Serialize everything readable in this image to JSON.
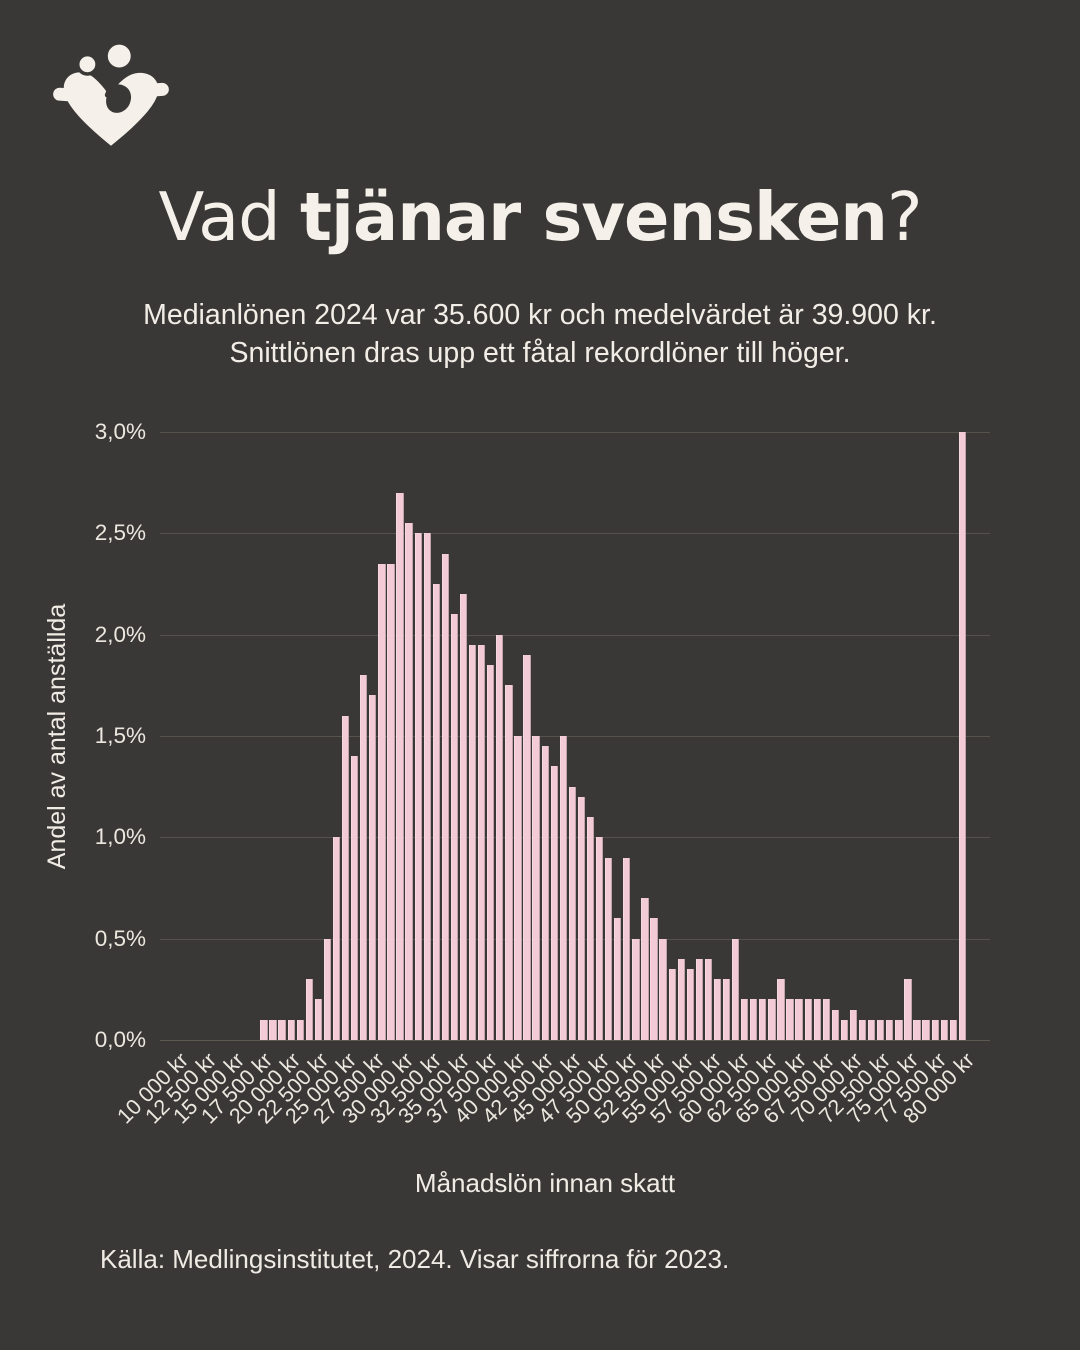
{
  "page": {
    "background": "#3a3836",
    "text_color": "#f4f0e9",
    "accent_bar_color": "#f3cbd7"
  },
  "logo": {
    "name": "family-heart-logo",
    "color": "#f5f1ea"
  },
  "title": {
    "prefix": "Vad ",
    "bold": "tjänar svensken",
    "suffix": "?"
  },
  "subtitle": "Medianlönen 2024 var 35.600 kr och medelvärdet är 39.900 kr. Snittlönen dras upp ett fåtal rekordlöner till höger.",
  "chart_data": {
    "type": "bar",
    "title": "",
    "xlabel": "Månadslön innan skatt",
    "ylabel": "Andel av antal anställda",
    "ylim": [
      0,
      3.0
    ],
    "grid": true,
    "legend": false,
    "bar_color": "#f3cbd7",
    "ytick_values": [
      0,
      0.5,
      1.0,
      1.5,
      2.0,
      2.5,
      3.0
    ],
    "ytick_labels": [
      "0,0%",
      "0,5%",
      "1,0%",
      "1,5%",
      "2,0%",
      "2,5%",
      "3,0%"
    ],
    "xtick_labels": [
      "10 000 kr",
      "12 500 kr",
      "15 000 kr",
      "17 500 kr",
      "20 000 kr",
      "22 500 kr",
      "25 000 kr",
      "27 500 kr",
      "30 000 kr",
      "32 500 kr",
      "35 000 kr",
      "37 500 kr",
      "40 000 kr",
      "42 500 kr",
      "45 000 kr",
      "47 500 kr",
      "50 000 kr",
      "52 500 kr",
      "55 000 kr",
      "57 500 kr",
      "60 000 kr",
      "62 500 kr",
      "65 000 kr",
      "67 500 kr",
      "70 000 kr",
      "72 500 kr",
      "75 000 kr",
      "77 500 kr",
      "80 000 kr"
    ],
    "values_pct": [
      0.1,
      0.1,
      0.1,
      0.1,
      0.1,
      0.3,
      0.2,
      0.5,
      1.0,
      1.6,
      1.4,
      1.8,
      1.7,
      2.35,
      2.35,
      2.7,
      2.55,
      2.5,
      2.5,
      2.25,
      2.4,
      2.1,
      2.2,
      1.95,
      1.95,
      1.85,
      2.0,
      1.75,
      1.5,
      1.9,
      1.5,
      1.45,
      1.35,
      1.5,
      1.25,
      1.2,
      1.1,
      1.0,
      0.9,
      0.6,
      0.9,
      0.5,
      0.7,
      0.6,
      0.5,
      0.35,
      0.4,
      0.35,
      0.4,
      0.4,
      0.3,
      0.3,
      0.5,
      0.2,
      0.2,
      0.2,
      0.2,
      0.3,
      0.2,
      0.2,
      0.2,
      0.2,
      0.2,
      0.15,
      0.1,
      0.15,
      0.1,
      0.1,
      0.1,
      0.1,
      0.1,
      0.3,
      0.1,
      0.1,
      0.1,
      0.1,
      0.1,
      3.0
    ],
    "annotation": "last bar is the 80 000 kr+ catch-all spike reaching 3,0%"
  },
  "footer": {
    "source": "Källa: Medlingsinstitutet, 2024. Visar siffrorna för 2023."
  }
}
